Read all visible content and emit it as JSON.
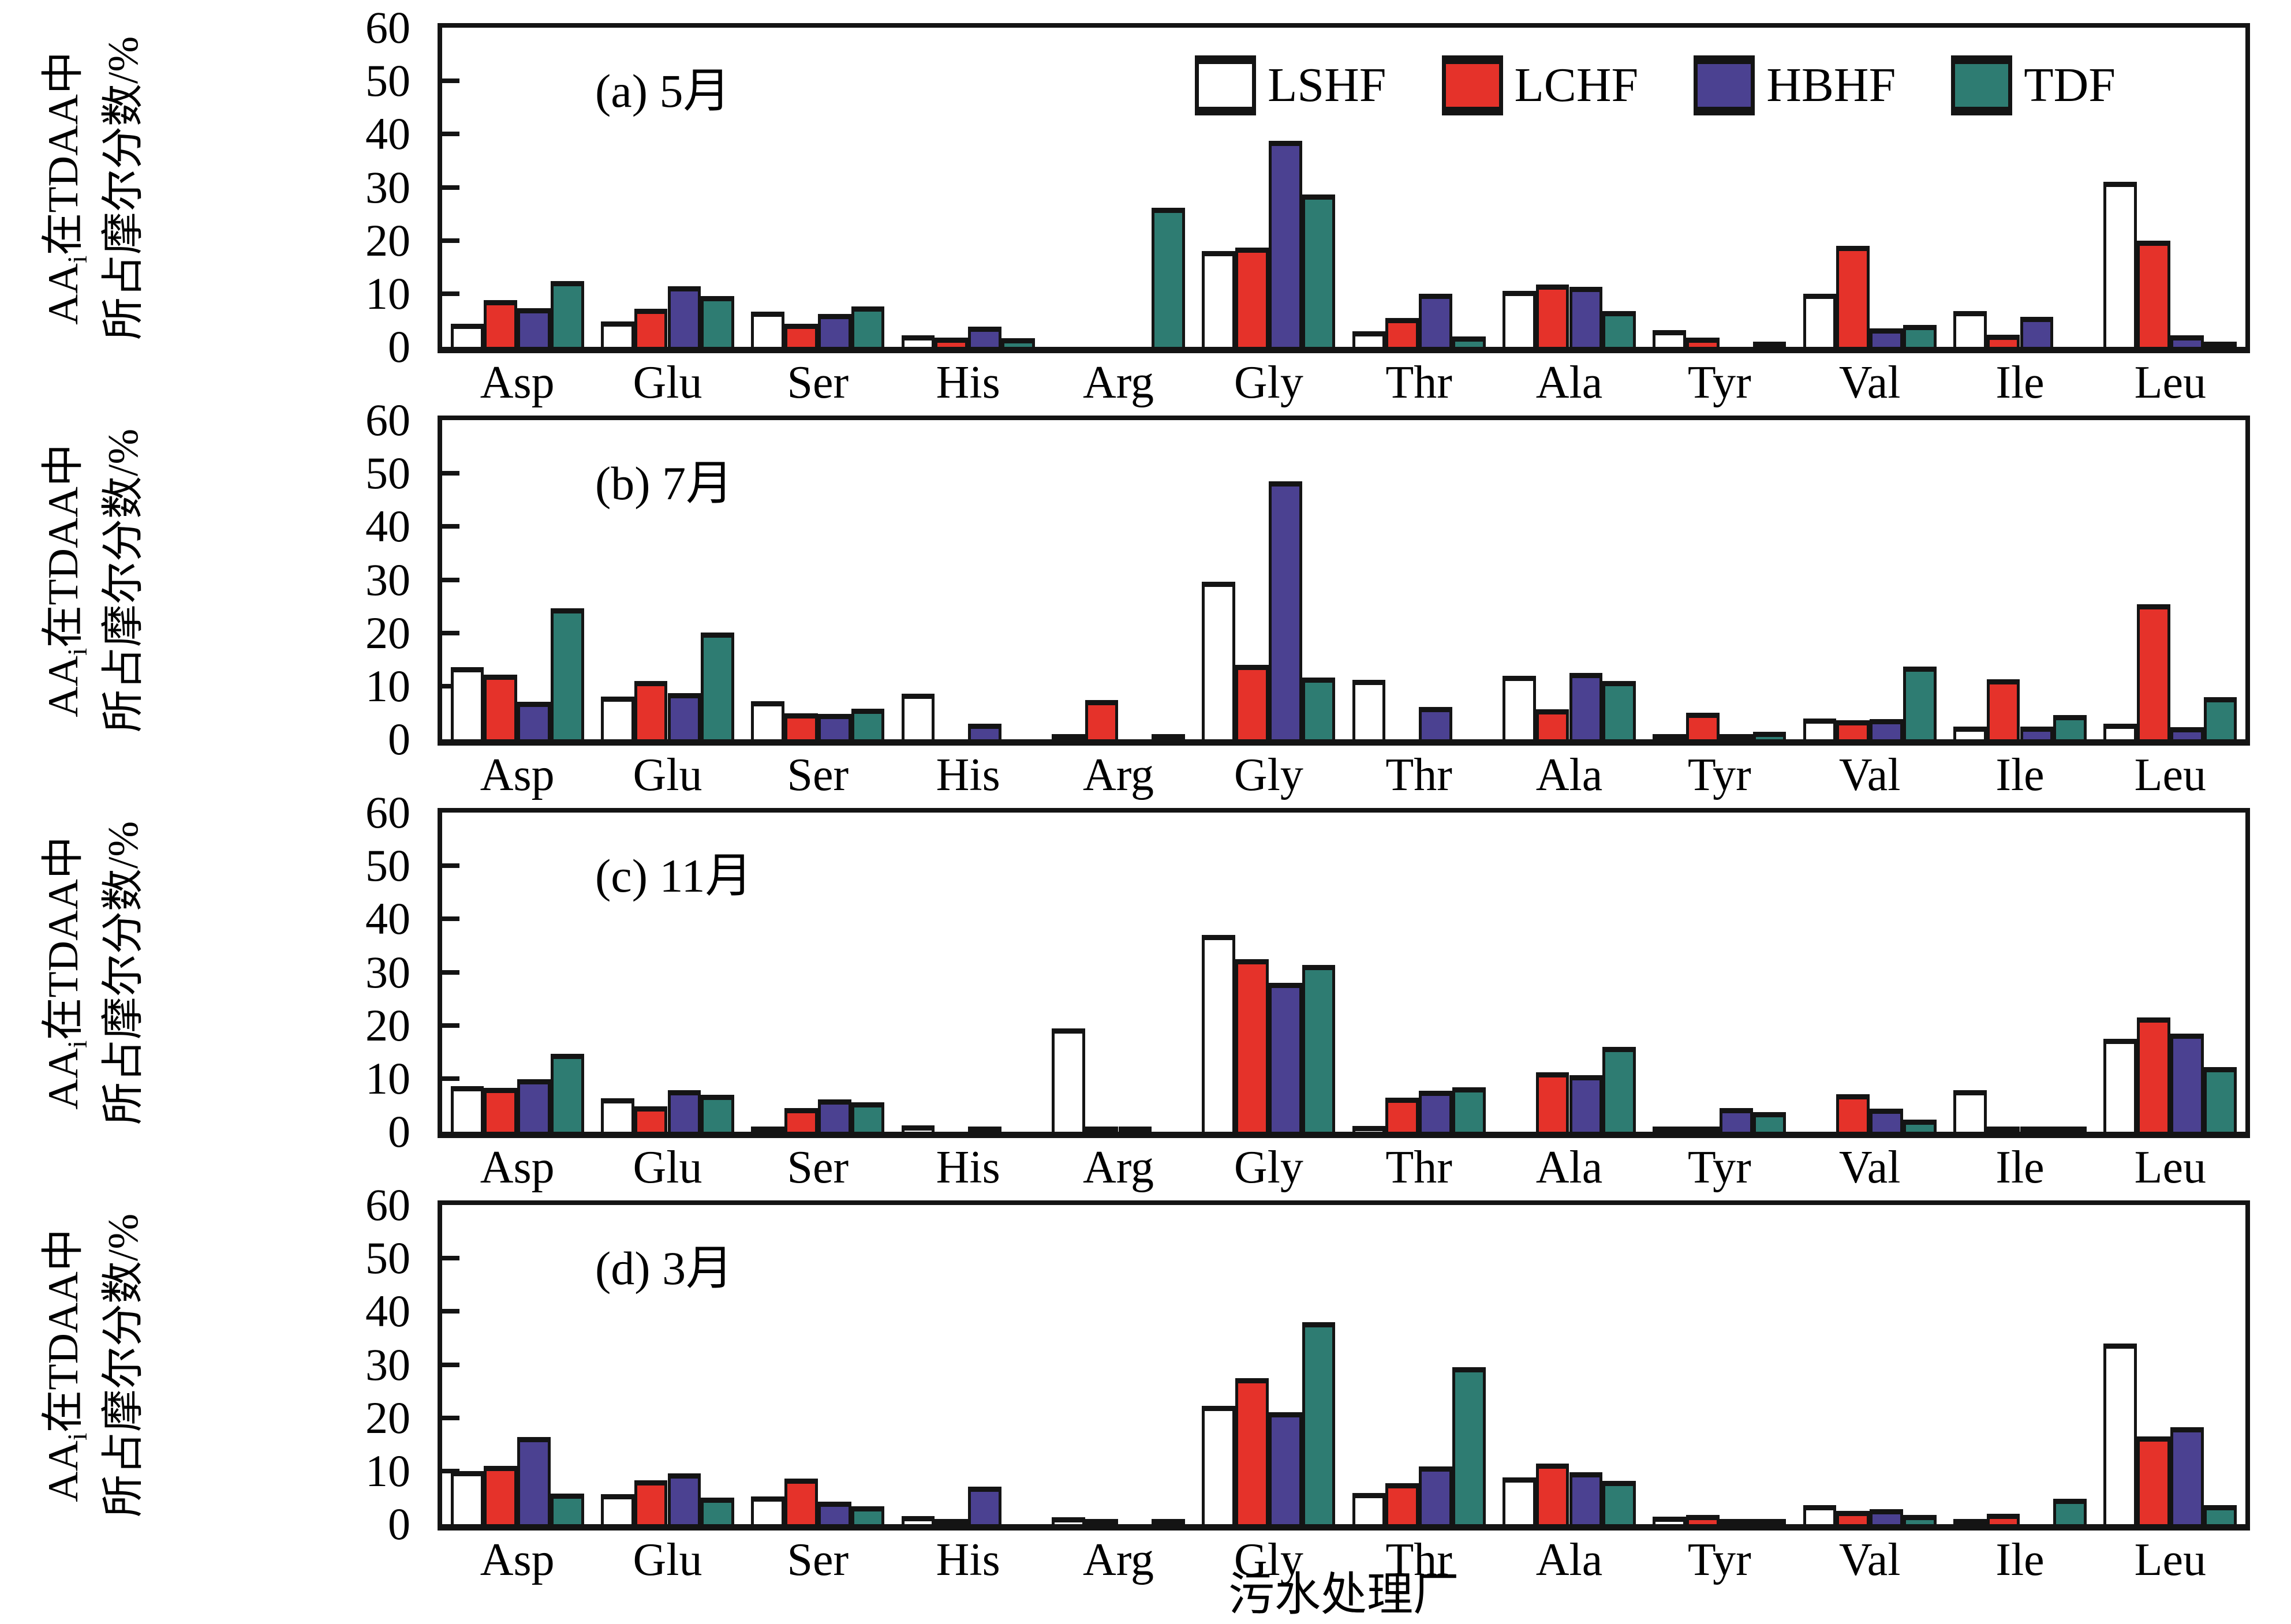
{
  "figure": {
    "ylabel_line1_prefix": "AA",
    "ylabel_sub": "i",
    "ylabel_line1_suffix": "在TDAA中",
    "ylabel_line2": "所占摩尔分数/%",
    "xlabel": "污水处理厂"
  },
  "chart_data": {
    "type": "bar",
    "categories": [
      "Asp",
      "Glu",
      "Ser",
      "His",
      "Arg",
      "Gly",
      "Thr",
      "Ala",
      "Tyr",
      "Val",
      "Ile",
      "Leu"
    ],
    "legend": [
      "LSHF",
      "LCHF",
      "HBHF",
      "TDF"
    ],
    "colors": {
      "LSHF": "#ffffff",
      "LCHF": "#e5322a",
      "HBHF": "#4b4191",
      "TDF": "#2e7c72"
    },
    "ylim": [
      0,
      60
    ],
    "yticks": [
      0,
      10,
      20,
      30,
      40,
      50,
      60
    ],
    "grid": false,
    "legend_position": "top-right of panel (a)",
    "panels": [
      {
        "label": "(a) 5月",
        "series": [
          {
            "name": "LSHF",
            "values": [
              4.3,
              4.8,
              6.6,
              2.2,
              0,
              18.0,
              2.9,
              10.5,
              3.2,
              10.0,
              6.7,
              31.0
            ]
          },
          {
            "name": "LCHF",
            "values": [
              8.8,
              7.2,
              4.3,
              1.7,
              0,
              18.7,
              5.4,
              11.7,
              1.7,
              19.0,
              2.3,
              20.0
            ]
          },
          {
            "name": "HBHF",
            "values": [
              7.3,
              11.4,
              6.2,
              3.8,
              0,
              38.7,
              10.0,
              11.3,
              0,
              3.5,
              5.6,
              2.2
            ]
          },
          {
            "name": "TDF",
            "values": [
              12.4,
              9.6,
              7.6,
              1.6,
              26.2,
              28.6,
              2.0,
              6.7,
              0.8,
              4.1,
              0,
              0.9
            ]
          }
        ]
      },
      {
        "label": "(b) 7月",
        "series": [
          {
            "name": "LSHF",
            "values": [
              13.6,
              8.0,
              7.2,
              8.6,
              0.2,
              29.6,
              11.2,
              11.9,
              1.0,
              3.9,
              2.4,
              2.9
            ]
          },
          {
            "name": "LCHF",
            "values": [
              12.1,
              11.0,
              4.9,
              0,
              7.4,
              14.0,
              0,
              5.6,
              5.0,
              3.6,
              11.3,
              25.4
            ]
          },
          {
            "name": "HBHF",
            "values": [
              7.1,
              8.7,
              4.8,
              2.9,
              0,
              48.5,
              6.1,
              12.5,
              0.8,
              3.8,
              2.4,
              2.3
            ]
          },
          {
            "name": "TDF",
            "values": [
              24.6,
              20.1,
              5.8,
              0,
              0.2,
              11.6,
              0,
              11.0,
              1.4,
              13.7,
              4.6,
              7.9
            ]
          }
        ]
      },
      {
        "label": "(c) 11月",
        "series": [
          {
            "name": "LSHF",
            "values": [
              8.6,
              6.3,
              0.7,
              1.2,
              19.4,
              37.0,
              1.1,
              0,
              0.3,
              0,
              7.8,
              17.5
            ]
          },
          {
            "name": "LCHF",
            "values": [
              8.3,
              4.8,
              4.5,
              0,
              0.3,
              32.4,
              6.4,
              11.2,
              0.8,
              7.1,
              0.5,
              21.5
            ]
          },
          {
            "name": "HBHF",
            "values": [
              9.9,
              7.8,
              6.1,
              0.5,
              0.5,
              28.0,
              7.7,
              10.6,
              4.4,
              4.3,
              0.4,
              18.4
            ]
          },
          {
            "name": "TDF",
            "values": [
              14.6,
              6.9,
              5.5,
              0,
              0,
              31.4,
              8.4,
              15.9,
              3.7,
              2.3,
              0.4,
              12.2
            ]
          }
        ]
      },
      {
        "label": "(d) 3月",
        "series": [
          {
            "name": "LSHF",
            "values": [
              10.0,
              5.6,
              5.2,
              1.5,
              1.3,
              22.2,
              5.9,
              8.8,
              1.4,
              3.6,
              0.9,
              34.0
            ]
          },
          {
            "name": "LCHF",
            "values": [
              11.0,
              8.3,
              8.6,
              0.3,
              0.2,
              27.5,
              7.7,
              11.4,
              1.7,
              2.5,
              2.0,
              16.5
            ]
          },
          {
            "name": "HBHF",
            "values": [
              16.4,
              9.5,
              4.2,
              7.0,
              0,
              21.0,
              10.9,
              9.8,
              0.6,
              2.8,
              0,
              18.2
            ]
          },
          {
            "name": "TDF",
            "values": [
              5.8,
              5.0,
              3.4,
              0,
              0.5,
              38.0,
              29.5,
              8.1,
              0.3,
              1.7,
              4.8,
              3.6
            ]
          }
        ]
      }
    ]
  }
}
